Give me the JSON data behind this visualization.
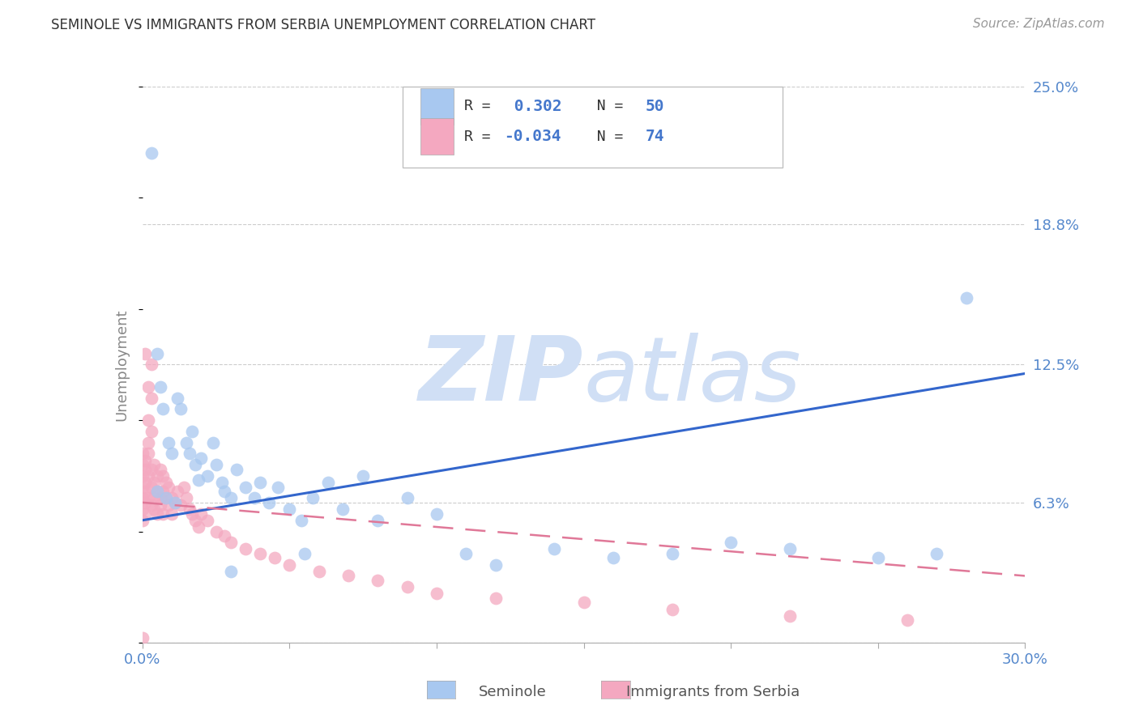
{
  "title": "SEMINOLE VS IMMIGRANTS FROM SERBIA UNEMPLOYMENT CORRELATION CHART",
  "source_text": "Source: ZipAtlas.com",
  "ylabel": "Unemployment",
  "xlim": [
    0.0,
    0.3
  ],
  "ylim": [
    0.0,
    0.25
  ],
  "legend_labels": [
    "Seminole",
    "Immigrants from Serbia"
  ],
  "seminole_R": 0.302,
  "seminole_N": 50,
  "serbia_R": -0.034,
  "serbia_N": 74,
  "seminole_color": "#a8c8f0",
  "serbia_color": "#f4a8c0",
  "trend_blue": "#3366cc",
  "trend_pink": "#e07898",
  "watermark_color": "#d0dff5",
  "bg_color": "#ffffff",
  "grid_color": "#cccccc",
  "title_color": "#333333",
  "axis_label_color": "#5588cc",
  "legend_text_black": "#333333",
  "legend_text_blue": "#4477cc",
  "blue_line_y0": 0.055,
  "blue_line_y1": 0.121,
  "pink_line_y0": 0.063,
  "pink_line_y1": 0.03,
  "seminole_x": [
    0.003,
    0.005,
    0.006,
    0.007,
    0.009,
    0.01,
    0.012,
    0.013,
    0.015,
    0.016,
    0.017,
    0.018,
    0.019,
    0.02,
    0.022,
    0.024,
    0.025,
    0.027,
    0.028,
    0.03,
    0.032,
    0.035,
    0.038,
    0.04,
    0.043,
    0.046,
    0.05,
    0.054,
    0.058,
    0.063,
    0.068,
    0.075,
    0.08,
    0.09,
    0.1,
    0.11,
    0.12,
    0.14,
    0.16,
    0.18,
    0.2,
    0.22,
    0.25,
    0.27,
    0.005,
    0.008,
    0.011,
    0.03,
    0.055,
    0.28
  ],
  "seminole_y": [
    0.22,
    0.13,
    0.115,
    0.105,
    0.09,
    0.085,
    0.11,
    0.105,
    0.09,
    0.085,
    0.095,
    0.08,
    0.073,
    0.083,
    0.075,
    0.09,
    0.08,
    0.072,
    0.068,
    0.065,
    0.078,
    0.07,
    0.065,
    0.072,
    0.063,
    0.07,
    0.06,
    0.055,
    0.065,
    0.072,
    0.06,
    0.075,
    0.055,
    0.065,
    0.058,
    0.04,
    0.035,
    0.042,
    0.038,
    0.04,
    0.045,
    0.042,
    0.038,
    0.04,
    0.068,
    0.065,
    0.063,
    0.032,
    0.04,
    0.155
  ],
  "serbia_x": [
    0.0,
    0.0,
    0.0,
    0.0,
    0.0,
    0.0,
    0.0,
    0.001,
    0.001,
    0.001,
    0.001,
    0.001,
    0.001,
    0.002,
    0.002,
    0.002,
    0.002,
    0.002,
    0.003,
    0.003,
    0.003,
    0.003,
    0.003,
    0.004,
    0.004,
    0.004,
    0.004,
    0.005,
    0.005,
    0.005,
    0.006,
    0.006,
    0.006,
    0.007,
    0.007,
    0.007,
    0.008,
    0.008,
    0.009,
    0.009,
    0.01,
    0.01,
    0.011,
    0.012,
    0.013,
    0.014,
    0.015,
    0.016,
    0.017,
    0.018,
    0.019,
    0.02,
    0.022,
    0.025,
    0.028,
    0.03,
    0.035,
    0.04,
    0.045,
    0.05,
    0.06,
    0.07,
    0.08,
    0.09,
    0.1,
    0.12,
    0.15,
    0.18,
    0.22,
    0.26,
    0.001,
    0.002,
    0.003,
    0.0
  ],
  "serbia_y": [
    0.065,
    0.07,
    0.055,
    0.075,
    0.085,
    0.06,
    0.08,
    0.063,
    0.068,
    0.078,
    0.072,
    0.058,
    0.082,
    0.065,
    0.075,
    0.085,
    0.09,
    0.1,
    0.062,
    0.07,
    0.078,
    0.095,
    0.11,
    0.065,
    0.072,
    0.08,
    0.06,
    0.068,
    0.075,
    0.058,
    0.065,
    0.078,
    0.062,
    0.068,
    0.075,
    0.058,
    0.065,
    0.072,
    0.062,
    0.07,
    0.065,
    0.058,
    0.063,
    0.068,
    0.062,
    0.07,
    0.065,
    0.06,
    0.058,
    0.055,
    0.052,
    0.058,
    0.055,
    0.05,
    0.048,
    0.045,
    0.042,
    0.04,
    0.038,
    0.035,
    0.032,
    0.03,
    0.028,
    0.025,
    0.022,
    0.02,
    0.018,
    0.015,
    0.012,
    0.01,
    0.13,
    0.115,
    0.125,
    0.002
  ]
}
